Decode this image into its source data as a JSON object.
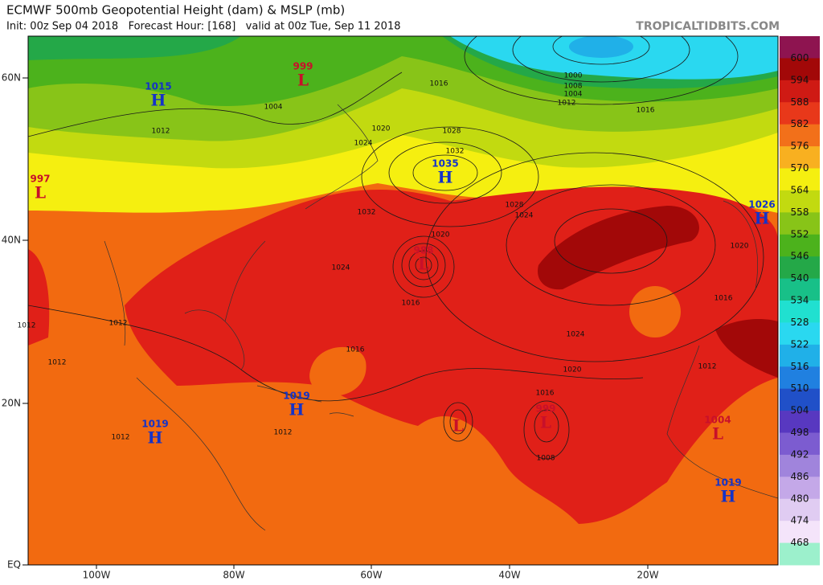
{
  "header": {
    "title": "ECMWF 500mb Geopotential Height (dam) & MSLP (mb)",
    "subtitle": "Init: 00z Sep 04 2018   Forecast Hour: [168]   valid at 00z Tue, Sep 11 2018",
    "credit": "TROPICALTIDBITS.COM"
  },
  "map": {
    "lat_labels": [
      "60N",
      "40N",
      "20N",
      "EQ"
    ],
    "lon_labels": [
      "100W",
      "80W",
      "60W",
      "40W",
      "20W"
    ],
    "centers": [
      {
        "letter": "L",
        "value": "999"
      },
      {
        "letter": "H",
        "value": "1015"
      },
      {
        "letter": "L",
        "value": "997"
      },
      {
        "letter": "H",
        "value": "1035"
      },
      {
        "letter": "H",
        "value": "1026"
      },
      {
        "letter": "L",
        "value": "988"
      },
      {
        "letter": "H",
        "value": "1019"
      },
      {
        "letter": "H",
        "value": "1019"
      },
      {
        "letter": "L",
        "value": "999"
      },
      {
        "letter": "L",
        "value": "1004"
      },
      {
        "letter": "H",
        "value": "1019"
      },
      {
        "letter": "L"
      }
    ],
    "contour_labels": [
      "1016",
      "1004",
      "1000",
      "1008",
      "1012",
      "1016",
      "1012",
      "1004",
      "1020",
      "1024",
      "1028",
      "1032",
      "1028",
      "1024",
      "1032",
      "1020",
      "1024",
      "1016",
      "1024",
      "1020",
      "1016",
      "1016",
      "1012",
      "1012",
      "1012",
      "1012",
      "1012",
      "1008",
      "1016",
      "1012",
      "1020"
    ]
  },
  "colorbar": {
    "labels": [
      600,
      594,
      588,
      582,
      576,
      570,
      564,
      558,
      552,
      546,
      540,
      534,
      528,
      522,
      516,
      510,
      504,
      498,
      492,
      486,
      480,
      474,
      468
    ],
    "colors": [
      "#8e1450",
      "#a20808",
      "#cf1a14",
      "#e8381a",
      "#f2701a",
      "#f8b020",
      "#f5ef10",
      "#c2da10",
      "#88c418",
      "#4cb21c",
      "#24a848",
      "#18c088",
      "#20e0d0",
      "#2ad8f0",
      "#20b0e8",
      "#2080e0",
      "#2050c8",
      "#5838c0",
      "#7c5cd0",
      "#a084dc",
      "#c4a8e8",
      "#e0ccf2",
      "#f4e4fa",
      "#9cf0cc"
    ]
  }
}
